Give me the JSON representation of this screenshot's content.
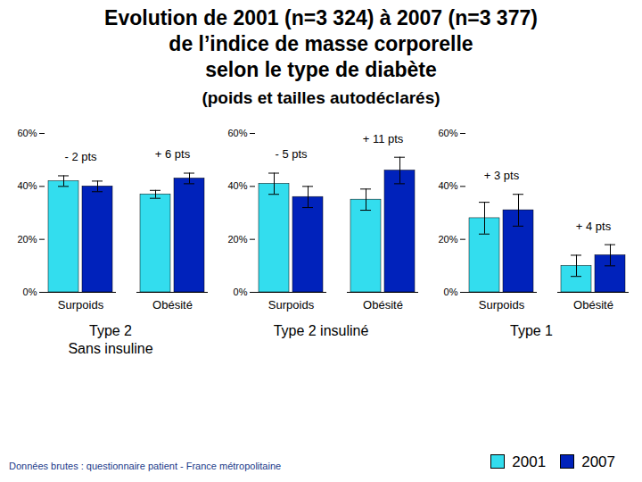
{
  "title": [
    "Evolution de 2001 (n=3 324) à 2007 (n=3 377)",
    "de l’indice de masse corporelle",
    "selon le type de diabète"
  ],
  "subtitle": "(poids et tailles autodéclarés)",
  "note": "Données brutes : questionnaire patient - France métropolitaine",
  "chart_data": [
    {
      "type": "bar",
      "xlabel": "Type 2\nSans insuline",
      "categories": [
        "Surpoids",
        "Obésité"
      ],
      "series": [
        {
          "name": "2001",
          "color": "#33ddee",
          "values": [
            42,
            37
          ],
          "errors": [
            2,
            1.5
          ]
        },
        {
          "name": "2007",
          "color": "#0022bb",
          "values": [
            40,
            43
          ],
          "errors": [
            2,
            2
          ]
        }
      ],
      "annotations": [
        {
          "category": "Surpoids",
          "text": "- 2 pts"
        },
        {
          "category": "Obésité",
          "text": "+ 6 pts"
        }
      ],
      "ylim": [
        0,
        60
      ],
      "yticks": [
        {
          "value": 0,
          "label": "0%"
        },
        {
          "value": 20,
          "label": "20%"
        },
        {
          "value": 40,
          "label": "40%"
        },
        {
          "value": 60,
          "label": "60%"
        }
      ]
    },
    {
      "type": "bar",
      "xlabel": "Type 2 insuliné",
      "categories": [
        "Surpoids",
        "Obésité"
      ],
      "series": [
        {
          "name": "2001",
          "color": "#33ddee",
          "values": [
            41,
            35
          ],
          "errors": [
            4,
            4
          ]
        },
        {
          "name": "2007",
          "color": "#0022bb",
          "values": [
            36,
            46
          ],
          "errors": [
            4,
            5
          ]
        }
      ],
      "annotations": [
        {
          "category": "Surpoids",
          "text": "- 5 pts"
        },
        {
          "category": "Obésité",
          "text": "+ 11 pts"
        }
      ],
      "ylim": [
        0,
        60
      ],
      "yticks": [
        {
          "value": 0,
          "label": "0%"
        },
        {
          "value": 20,
          "label": "20%"
        },
        {
          "value": 40,
          "label": "40%"
        },
        {
          "value": 60,
          "label": "60%"
        }
      ]
    },
    {
      "type": "bar",
      "xlabel": "Type 1",
      "categories": [
        "Surpoids",
        "Obésité"
      ],
      "series": [
        {
          "name": "2001",
          "color": "#33ddee",
          "values": [
            28,
            10
          ],
          "errors": [
            6,
            4
          ]
        },
        {
          "name": "2007",
          "color": "#0022bb",
          "values": [
            31,
            14
          ],
          "errors": [
            6,
            4
          ]
        }
      ],
      "annotations": [
        {
          "category": "Surpoids",
          "text": "+ 3 pts"
        },
        {
          "category": "Obésité",
          "text": "+ 4 pts"
        }
      ],
      "ylim": [
        0,
        60
      ],
      "yticks": [
        {
          "value": 0,
          "label": "0%"
        },
        {
          "value": 20,
          "label": "20%"
        },
        {
          "value": 40,
          "label": "40%"
        },
        {
          "value": 60,
          "label": "60%"
        }
      ]
    }
  ]
}
